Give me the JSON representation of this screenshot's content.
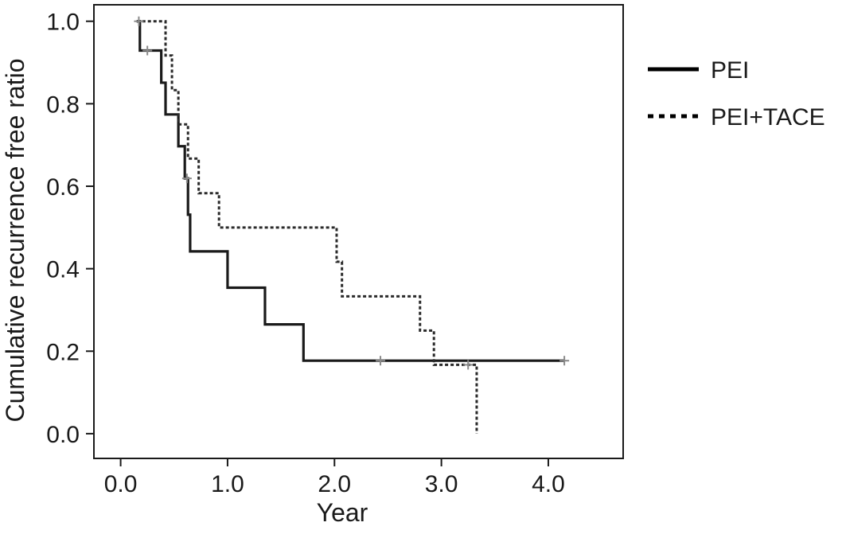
{
  "chart_data": {
    "type": "line",
    "subtype": "step (Kaplan-Meier)",
    "xlabel": "Year",
    "ylabel": "Cumulative recurrence free ratio",
    "xlim": [
      -0.25,
      4.7
    ],
    "ylim": [
      -0.06,
      1.04
    ],
    "xticks": [
      0.0,
      1.0,
      2.0,
      3.0,
      4.0
    ],
    "xtick_labels": [
      "0.0",
      "1.0",
      "2.0",
      "3.0",
      "4.0"
    ],
    "yticks": [
      0.0,
      0.2,
      0.4,
      0.6,
      0.8,
      1.0
    ],
    "ytick_labels": [
      "0.0",
      "0.2",
      "0.4",
      "0.6",
      "0.8",
      "1.0"
    ],
    "grid": false,
    "legend_position": "right",
    "series": [
      {
        "name": "PEI",
        "line_style": "solid",
        "color": "#1a1a1a",
        "steps": [
          [
            0.15,
            1.0
          ],
          [
            0.18,
            0.929
          ],
          [
            0.38,
            0.851
          ],
          [
            0.42,
            0.774
          ],
          [
            0.54,
            0.697
          ],
          [
            0.6,
            0.619
          ],
          [
            0.63,
            0.531
          ],
          [
            0.65,
            0.442
          ],
          [
            1.0,
            0.354
          ],
          [
            1.35,
            0.265
          ],
          [
            1.71,
            0.177
          ],
          [
            4.15,
            0.177
          ]
        ],
        "censored": [
          [
            0.17,
            1.0
          ],
          [
            0.25,
            0.929
          ],
          [
            0.62,
            0.619
          ],
          [
            2.43,
            0.177
          ],
          [
            4.15,
            0.177
          ]
        ]
      },
      {
        "name": "PEI+TACE",
        "line_style": "dotted",
        "color": "#333333",
        "steps": [
          [
            0.15,
            1.0
          ],
          [
            0.42,
            0.917
          ],
          [
            0.48,
            0.833
          ],
          [
            0.54,
            0.75
          ],
          [
            0.63,
            0.667
          ],
          [
            0.73,
            0.583
          ],
          [
            0.92,
            0.5
          ],
          [
            2.02,
            0.417
          ],
          [
            2.07,
            0.333
          ],
          [
            2.8,
            0.25
          ],
          [
            2.93,
            0.167
          ],
          [
            3.33,
            0.0
          ]
        ],
        "censored": [
          [
            3.25,
            0.167
          ]
        ]
      }
    ]
  }
}
